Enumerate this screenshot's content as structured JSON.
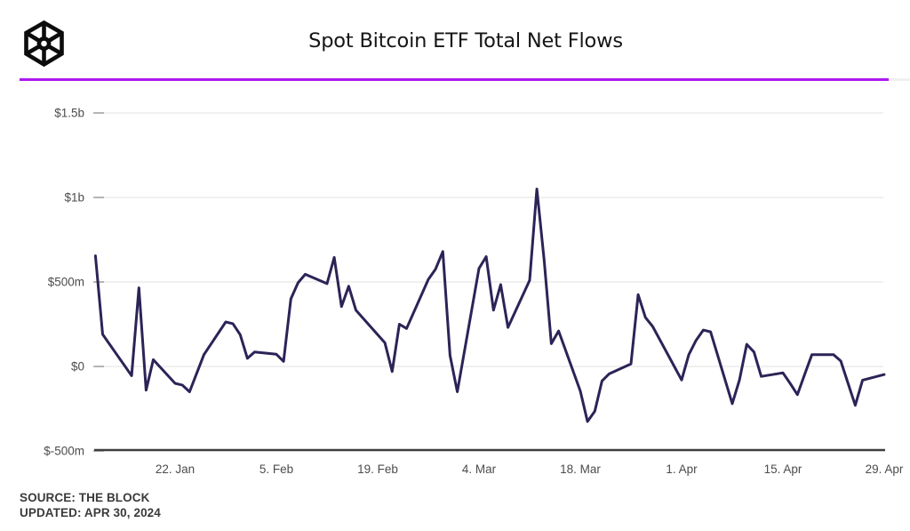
{
  "header": {
    "title": "Spot Bitcoin ETF Total Net Flows",
    "logo_name": "the-block-cube-logo",
    "accent_color": "#ae18f0"
  },
  "footer": {
    "source_line": "SOURCE: THE BLOCK",
    "updated_line": "UPDATED: APR 30, 2024"
  },
  "chart_data": {
    "type": "line",
    "title": "Spot Bitcoin ETF Total Net Flows",
    "unit": "USD, b = billions, m = millions",
    "line_color": "#2d2357",
    "grid": true,
    "gridline_color": "#ececec",
    "axis_line_color": "#3e3e3e",
    "label_color": "#4c4c4c",
    "ylim": [
      -500,
      1600
    ],
    "y_axis": {
      "ticks": [
        {
          "label": "$1.5b",
          "value": 1500
        },
        {
          "label": "$1b",
          "value": 1000
        },
        {
          "label": "$500m",
          "value": 500
        },
        {
          "label": "$0",
          "value": 0
        },
        {
          "label": "$-500m",
          "value": -500
        }
      ]
    },
    "x_axis": {
      "start": "Jan 11, 2024",
      "end": "Apr 29, 2024",
      "ticks": [
        {
          "label": "22. Jan",
          "day": 11
        },
        {
          "label": "5. Feb",
          "day": 25
        },
        {
          "label": "19. Feb",
          "day": 39
        },
        {
          "label": "4. Mar",
          "day": 53
        },
        {
          "label": "18. Mar",
          "day": 67
        },
        {
          "label": "1. Apr",
          "day": 81
        },
        {
          "label": "15. Apr",
          "day": 95
        },
        {
          "label": "29. Apr",
          "day": 109
        }
      ]
    },
    "series": [
      {
        "date": "Jan 11",
        "day": 0,
        "value": 655
      },
      {
        "date": "Jan 12",
        "day": 1,
        "value": 190
      },
      {
        "date": "Jan 16",
        "day": 5,
        "value": -55
      },
      {
        "date": "Jan 17",
        "day": 6,
        "value": 465
      },
      {
        "date": "Jan 18",
        "day": 7,
        "value": -140
      },
      {
        "date": "Jan 19",
        "day": 8,
        "value": 40
      },
      {
        "date": "Jan 22",
        "day": 11,
        "value": -100
      },
      {
        "date": "Jan 23",
        "day": 12,
        "value": -110
      },
      {
        "date": "Jan 24",
        "day": 13,
        "value": -150
      },
      {
        "date": "Jan 25",
        "day": 14,
        "value": -40
      },
      {
        "date": "Jan 26",
        "day": 15,
        "value": 70
      },
      {
        "date": "Jan 29",
        "day": 18,
        "value": 263
      },
      {
        "date": "Jan 30",
        "day": 19,
        "value": 253
      },
      {
        "date": "Jan 31",
        "day": 20,
        "value": 188
      },
      {
        "date": "Feb 1",
        "day": 21,
        "value": 48
      },
      {
        "date": "Feb 2",
        "day": 22,
        "value": 86
      },
      {
        "date": "Feb 5",
        "day": 25,
        "value": 72
      },
      {
        "date": "Feb 6",
        "day": 26,
        "value": 30
      },
      {
        "date": "Feb 7",
        "day": 27,
        "value": 400
      },
      {
        "date": "Feb 8",
        "day": 28,
        "value": 495
      },
      {
        "date": "Feb 9",
        "day": 29,
        "value": 545
      },
      {
        "date": "Feb 12",
        "day": 32,
        "value": 490
      },
      {
        "date": "Feb 13",
        "day": 33,
        "value": 645
      },
      {
        "date": "Feb 14",
        "day": 34,
        "value": 355
      },
      {
        "date": "Feb 15",
        "day": 35,
        "value": 475
      },
      {
        "date": "Feb 16",
        "day": 36,
        "value": 333
      },
      {
        "date": "Feb 20",
        "day": 40,
        "value": 140
      },
      {
        "date": "Feb 21",
        "day": 41,
        "value": -30
      },
      {
        "date": "Feb 22",
        "day": 42,
        "value": 250
      },
      {
        "date": "Feb 23",
        "day": 43,
        "value": 225
      },
      {
        "date": "Feb 26",
        "day": 46,
        "value": 515
      },
      {
        "date": "Feb 27",
        "day": 47,
        "value": 576
      },
      {
        "date": "Feb 28",
        "day": 48,
        "value": 680
      },
      {
        "date": "Feb 29",
        "day": 49,
        "value": 65
      },
      {
        "date": "Mar 1",
        "day": 50,
        "value": -150
      },
      {
        "date": "Mar 4",
        "day": 53,
        "value": 580
      },
      {
        "date": "Mar 5",
        "day": 54,
        "value": 650
      },
      {
        "date": "Mar 6",
        "day": 55,
        "value": 333
      },
      {
        "date": "Mar 7",
        "day": 56,
        "value": 484
      },
      {
        "date": "Mar 8",
        "day": 57,
        "value": 231
      },
      {
        "date": "Mar 11",
        "day": 60,
        "value": 510
      },
      {
        "date": "Mar 12",
        "day": 61,
        "value": 1050
      },
      {
        "date": "Mar 13",
        "day": 62,
        "value": 630
      },
      {
        "date": "Mar 14",
        "day": 63,
        "value": 135
      },
      {
        "date": "Mar 15",
        "day": 64,
        "value": 210
      },
      {
        "date": "Mar 18",
        "day": 67,
        "value": -145
      },
      {
        "date": "Mar 19",
        "day": 68,
        "value": -326
      },
      {
        "date": "Mar 20",
        "day": 69,
        "value": -265
      },
      {
        "date": "Mar 21",
        "day": 70,
        "value": -86
      },
      {
        "date": "Mar 22",
        "day": 71,
        "value": -43
      },
      {
        "date": "Mar 25",
        "day": 74,
        "value": 15
      },
      {
        "date": "Mar 26",
        "day": 75,
        "value": 425
      },
      {
        "date": "Mar 27",
        "day": 76,
        "value": 290
      },
      {
        "date": "Mar 28",
        "day": 77,
        "value": 237
      },
      {
        "date": "Apr 1",
        "day": 81,
        "value": -80
      },
      {
        "date": "Apr 2",
        "day": 82,
        "value": 70
      },
      {
        "date": "Apr 3",
        "day": 83,
        "value": 155
      },
      {
        "date": "Apr 4",
        "day": 84,
        "value": 215
      },
      {
        "date": "Apr 5",
        "day": 85,
        "value": 205
      },
      {
        "date": "Apr 8",
        "day": 88,
        "value": -220
      },
      {
        "date": "Apr 9",
        "day": 89,
        "value": -80
      },
      {
        "date": "Apr 10",
        "day": 90,
        "value": 131
      },
      {
        "date": "Apr 11",
        "day": 91,
        "value": 86
      },
      {
        "date": "Apr 12",
        "day": 92,
        "value": -59
      },
      {
        "date": "Apr 15",
        "day": 95,
        "value": -38
      },
      {
        "date": "Apr 16",
        "day": 96,
        "value": -100
      },
      {
        "date": "Apr 17",
        "day": 97,
        "value": -167
      },
      {
        "date": "Apr 18",
        "day": 98,
        "value": -48
      },
      {
        "date": "Apr 19",
        "day": 99,
        "value": 70
      },
      {
        "date": "Apr 22",
        "day": 102,
        "value": 70
      },
      {
        "date": "Apr 23",
        "day": 103,
        "value": 32
      },
      {
        "date": "Apr 24",
        "day": 104,
        "value": -100
      },
      {
        "date": "Apr 25",
        "day": 105,
        "value": -230
      },
      {
        "date": "Apr 26",
        "day": 106,
        "value": -81
      },
      {
        "date": "Apr 29",
        "day": 109,
        "value": -48
      }
    ]
  }
}
